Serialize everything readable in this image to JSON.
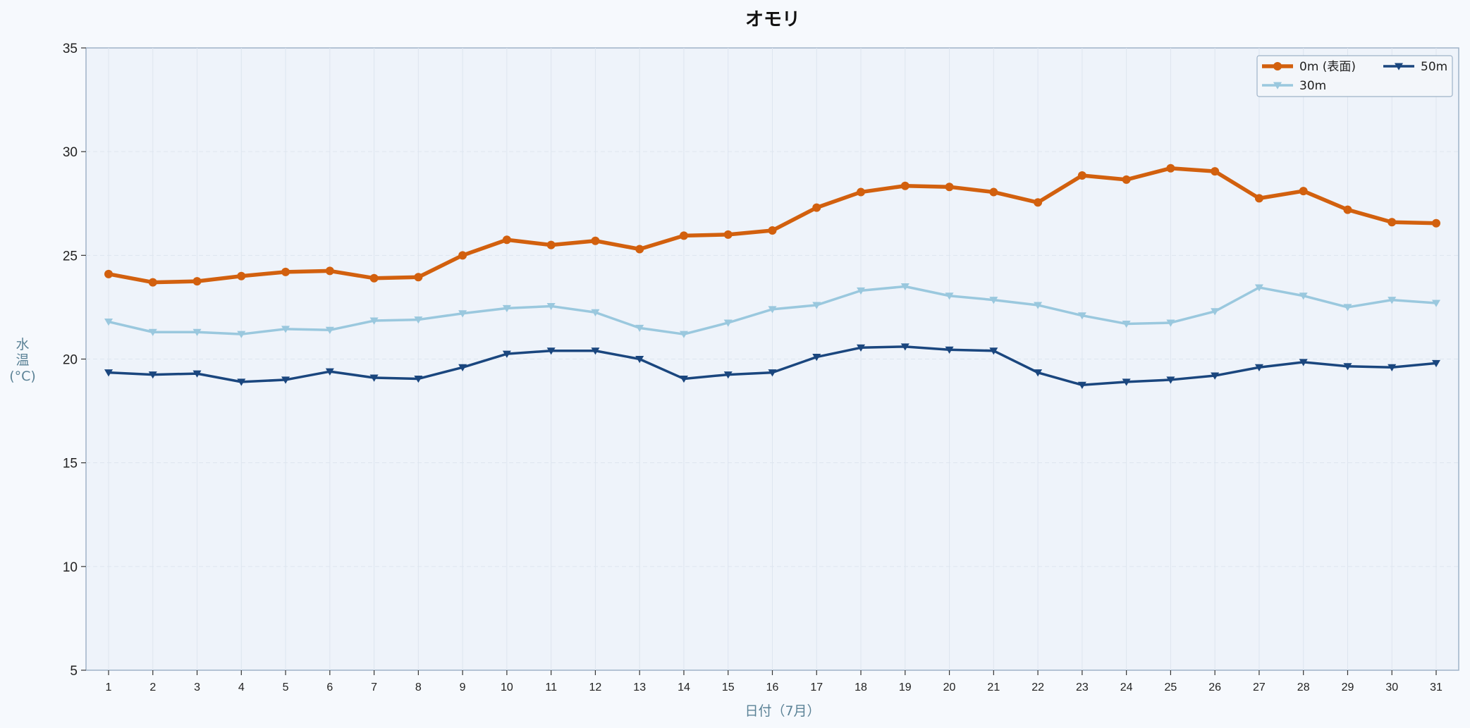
{
  "chart_data": {
    "type": "line",
    "title": "オモリ",
    "xlabel": "日付（7月）",
    "ylabel_chars": [
      "水",
      "温",
      "(°C)"
    ],
    "ylim": [
      5,
      35
    ],
    "yticks": [
      5,
      10,
      15,
      20,
      25,
      30,
      35
    ],
    "x": [
      1,
      2,
      3,
      4,
      5,
      6,
      7,
      8,
      9,
      10,
      11,
      12,
      13,
      14,
      15,
      16,
      17,
      18,
      19,
      20,
      21,
      22,
      23,
      24,
      25,
      26,
      27,
      28,
      29,
      30,
      31
    ],
    "grid": true,
    "legend_position": "top-right",
    "series": [
      {
        "name": "0m (表面)",
        "color": "#d2600e",
        "marker": "circle",
        "values": [
          24.1,
          23.7,
          23.75,
          24.0,
          24.2,
          24.25,
          23.9,
          23.95,
          25.0,
          25.75,
          25.5,
          25.7,
          25.3,
          25.95,
          26.0,
          26.2,
          27.3,
          28.05,
          28.35,
          28.3,
          28.05,
          27.55,
          28.85,
          28.65,
          29.2,
          29.05,
          27.75,
          28.1,
          27.2,
          26.6,
          26.55
        ]
      },
      {
        "name": "30m",
        "color": "#9ac8de",
        "marker": "triangle-down",
        "values": [
          21.8,
          21.3,
          21.3,
          21.2,
          21.45,
          21.4,
          21.85,
          21.9,
          22.2,
          22.45,
          22.55,
          22.25,
          21.5,
          21.2,
          21.75,
          22.4,
          22.6,
          23.3,
          23.5,
          23.05,
          22.85,
          22.6,
          22.1,
          21.7,
          21.75,
          22.3,
          23.45,
          23.05,
          22.5,
          22.85,
          22.7
        ]
      },
      {
        "name": "50m",
        "color": "#1a467e",
        "marker": "triangle-down",
        "values": [
          19.35,
          19.25,
          19.3,
          18.9,
          19.0,
          19.4,
          19.1,
          19.05,
          19.6,
          20.25,
          20.4,
          20.4,
          20.0,
          19.05,
          19.25,
          19.35,
          20.1,
          20.55,
          20.6,
          20.45,
          20.4,
          19.35,
          18.75,
          18.9,
          19.0,
          19.2,
          19.6,
          19.85,
          19.65,
          19.6,
          19.8
        ]
      }
    ]
  }
}
